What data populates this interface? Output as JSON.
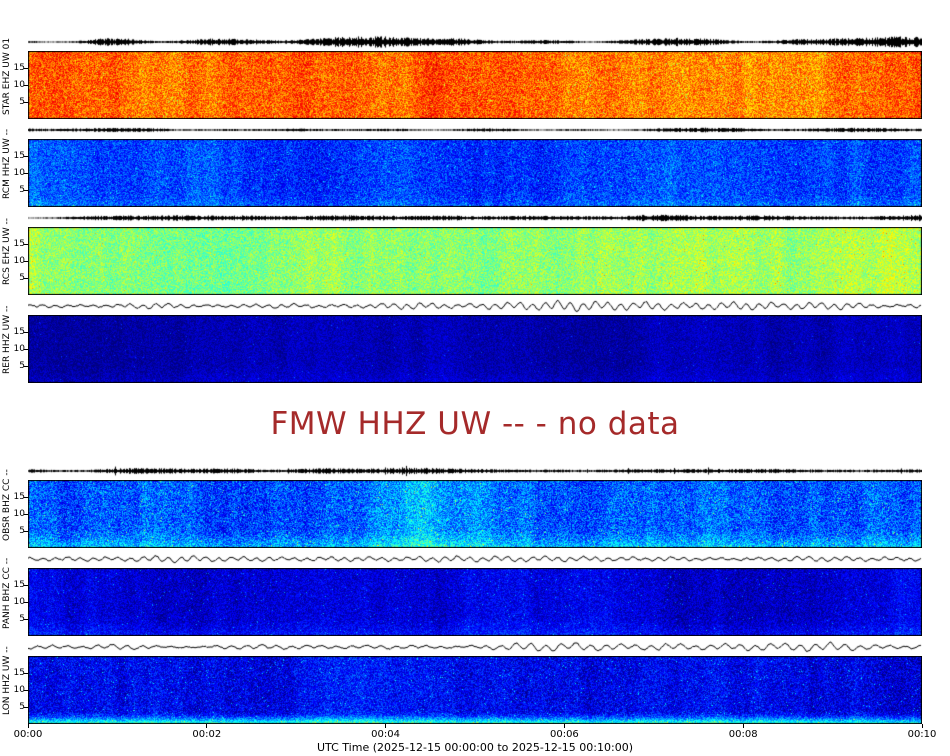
{
  "page": {
    "background": "#ffffff"
  },
  "chart_data": {
    "type": "heatmap",
    "description": "Stack of seismic station panels, each showing a black waveform trace above a jet-colormap spectrogram",
    "colormap": "jet",
    "xlabel": "UTC Time (2025-12-15 00:00:00 to 2025-12-15 00:10:00)",
    "x_ticks": [
      "00:00",
      "00:02",
      "00:04",
      "00:06",
      "00:08",
      "00:10"
    ],
    "x_range_minutes": [
      0,
      10
    ],
    "freq_ticks": [
      15,
      10,
      5
    ],
    "freq_range_hz": [
      0,
      20
    ],
    "grid": false,
    "no_data_color": "#a52a2a",
    "panels": [
      {
        "id": "star",
        "kind": "station",
        "label": "STAR EHZ UW 01",
        "spect": {
          "base": 0.78,
          "noise": 0.1,
          "band": 0.05,
          "bottom_boost": 0.0,
          "bottom_start": 0.8,
          "speckle": 0.02,
          "speckle_boost": -0.15
        },
        "trace": {
          "style": "dense",
          "amp": 6.0,
          "freq": 0
        }
      },
      {
        "id": "rcm",
        "kind": "station",
        "label": "RCM HHZ UW --",
        "spect": {
          "base": 0.17,
          "noise": 0.09,
          "band": 0.05,
          "bottom_boost": 0.05,
          "bottom_start": 0.8,
          "speckle": 0.015,
          "speckle_boost": 0.15
        },
        "trace": {
          "style": "dense",
          "amp": 2.4,
          "freq": 0
        }
      },
      {
        "id": "rcs",
        "kind": "station",
        "label": "RCS EHZ UW --",
        "spect": {
          "base": 0.53,
          "noise": 0.08,
          "band": 0.05,
          "bottom_boost": 0.0,
          "bottom_start": 0.8,
          "speckle": 0.012,
          "speckle_boost": 0.12
        },
        "trace": {
          "style": "dense",
          "amp": 4.6,
          "freq": 0
        }
      },
      {
        "id": "rer",
        "kind": "station",
        "label": "RER HHZ UW --",
        "spect": {
          "base": 0.05,
          "noise": 0.05,
          "band": 0.025,
          "bottom_boost": 0.03,
          "bottom_start": 0.7,
          "speckle": 0.005,
          "speckle_boost": 0.12
        },
        "trace": {
          "style": "smooth",
          "amp": 5.0,
          "freq": 0.5
        }
      },
      {
        "id": "fmw",
        "kind": "no-data",
        "station": "FMW HHZ UW",
        "label": "FMW HHZ UW -- - no data"
      },
      {
        "id": "obsr",
        "kind": "station",
        "label": "OBSR BHZ CC --",
        "spect": {
          "base": 0.22,
          "noise": 0.11,
          "band": 0.07,
          "bottom_boost": 0.12,
          "bottom_start": 0.7,
          "speckle": 0.02,
          "speckle_boost": 0.2
        },
        "trace": {
          "style": "spiky",
          "amp": 3.2,
          "freq": 0
        }
      },
      {
        "id": "panh",
        "kind": "station",
        "label": "PANH BHZ CC --",
        "spect": {
          "base": 0.09,
          "noise": 0.07,
          "band": 0.04,
          "bottom_boost": 0.06,
          "bottom_start": 0.7,
          "speckle": 0.01,
          "speckle_boost": 0.15
        },
        "trace": {
          "style": "smooth",
          "amp": 3.2,
          "freq": 0.5
        }
      },
      {
        "id": "lon",
        "kind": "station",
        "label": "LON HHZ UW --",
        "spect": {
          "base": 0.13,
          "noise": 0.09,
          "band": 0.05,
          "bottom_boost": 0.33,
          "bottom_start": 0.82,
          "speckle": 0.015,
          "speckle_boost": 0.18
        },
        "trace": {
          "style": "smooth",
          "amp": 4.2,
          "freq": 0.42
        }
      }
    ]
  }
}
